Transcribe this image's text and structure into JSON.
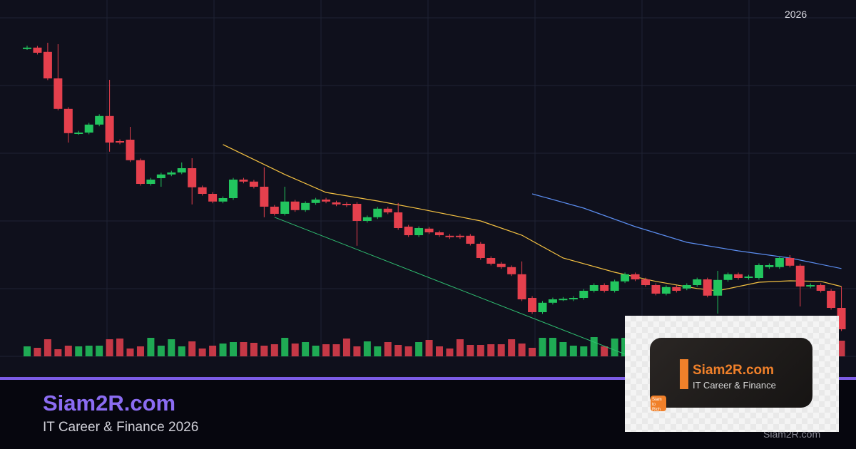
{
  "header": {
    "year_label": "2026"
  },
  "footer": {
    "brand": "Siam2R.com",
    "tagline": "IT Career & Finance 2026",
    "watermark": "Siam2R.com"
  },
  "logo_card": {
    "title": "Siam2R.com",
    "subtitle": "IT Career & Finance",
    "badge": "Siam to Rich"
  },
  "colors": {
    "up": "#22c55e",
    "down": "#e5404d",
    "ma_fast": "#f5c242",
    "ma_slow": "#5b8def",
    "trendline": "#2fbf71",
    "accent": "#7c5ce6",
    "logo_orange": "#f0802a"
  },
  "chart_data": {
    "type": "candlestick",
    "title": "",
    "xlabel": "",
    "ylabel": "",
    "grid": true,
    "candles": [
      {
        "o": 113.3,
        "c": 113.3,
        "h": 114,
        "l": 112.5
      },
      {
        "o": 113.3,
        "c": 111.5
      },
      {
        "o": 111.8,
        "c": 102.5,
        "h": 115
      },
      {
        "o": 102.5,
        "c": 91.8,
        "h": 114.5,
        "l": 91.3
      },
      {
        "o": 91.8,
        "c": 83.3,
        "l": 80
      },
      {
        "o": 83.3,
        "c": 83.5
      },
      {
        "o": 83.5,
        "c": 86.3
      },
      {
        "o": 86.3,
        "c": 89.3
      },
      {
        "o": 89.3,
        "c": 80,
        "h": 102,
        "l": 76.8
      },
      {
        "o": 80.5,
        "c": 80
      },
      {
        "o": 81,
        "c": 73.8,
        "h": 85.5
      },
      {
        "o": 73.8,
        "c": 65.5
      },
      {
        "o": 65.5,
        "c": 67
      },
      {
        "o": 67.5,
        "c": 68.8,
        "l": 64.5
      },
      {
        "o": 68.8,
        "c": 69.5
      },
      {
        "o": 69.5,
        "c": 71,
        "h": 73
      },
      {
        "o": 71,
        "c": 64.3,
        "h": 74.5,
        "l": 58.3
      },
      {
        "o": 64.3,
        "c": 62
      },
      {
        "o": 62,
        "c": 59.3
      },
      {
        "o": 59.3,
        "c": 60.5
      },
      {
        "o": 60.5,
        "c": 67
      },
      {
        "o": 67,
        "c": 66.3
      },
      {
        "o": 66.3,
        "c": 64.5
      },
      {
        "o": 64.5,
        "c": 57.5,
        "h": 71.3,
        "l": 53.8
      },
      {
        "o": 57.5,
        "c": 55
      },
      {
        "o": 55,
        "c": 59.3,
        "h": 64.5
      },
      {
        "o": 59.3,
        "c": 56.3
      },
      {
        "o": 56.3,
        "c": 58.8
      },
      {
        "o": 58.8,
        "c": 60
      },
      {
        "o": 60,
        "c": 59.3
      },
      {
        "o": 59,
        "c": 58.3
      },
      {
        "o": 58.5,
        "c": 58
      },
      {
        "o": 58.5,
        "c": 52.5,
        "l": 43.8
      },
      {
        "o": 52.5,
        "c": 53.8
      },
      {
        "o": 53.8,
        "c": 56.8
      },
      {
        "o": 56.8,
        "c": 55.5
      },
      {
        "o": 55.5,
        "c": 50,
        "h": 58.8
      },
      {
        "o": 50.5,
        "c": 47.5
      },
      {
        "o": 47.5,
        "c": 50
      },
      {
        "o": 49.8,
        "c": 48.5
      },
      {
        "o": 48.5,
        "c": 47.5
      },
      {
        "o": 47.3,
        "c": 46.8
      },
      {
        "o": 47.3,
        "c": 46.8
      },
      {
        "o": 47.3,
        "c": 44.5
      },
      {
        "o": 44.5,
        "c": 39.5
      },
      {
        "o": 39.5,
        "c": 37.5
      },
      {
        "o": 37.5,
        "c": 36.3
      },
      {
        "o": 36.3,
        "c": 33.8
      },
      {
        "o": 33.8,
        "c": 25,
        "h": 38.3
      },
      {
        "o": 25.5,
        "c": 20.5
      },
      {
        "o": 20.5,
        "c": 23.8
      },
      {
        "o": 23.8,
        "c": 25
      },
      {
        "o": 25,
        "c": 25.2
      },
      {
        "o": 25,
        "c": 25.5
      },
      {
        "o": 25.5,
        "c": 28
      },
      {
        "o": 28,
        "c": 30
      },
      {
        "o": 30,
        "c": 28
      },
      {
        "o": 28,
        "c": 31.3
      },
      {
        "o": 31.3,
        "c": 33.8
      },
      {
        "o": 33.8,
        "c": 32
      },
      {
        "o": 32,
        "c": 30
      },
      {
        "o": 30,
        "c": 27
      },
      {
        "o": 27,
        "c": 29.3
      },
      {
        "o": 29.3,
        "c": 28
      },
      {
        "o": 28.8,
        "c": 30
      },
      {
        "o": 30,
        "c": 32
      },
      {
        "o": 32,
        "c": 26.3
      },
      {
        "o": 26.3,
        "c": 31.8,
        "h": 35,
        "l": 20
      },
      {
        "o": 31.8,
        "c": 33.8
      },
      {
        "o": 33.8,
        "c": 32.5
      },
      {
        "o": 32.5,
        "c": 33
      },
      {
        "o": 32.5,
        "c": 37
      },
      {
        "o": 36.3,
        "c": 37
      },
      {
        "o": 36.3,
        "c": 39.5
      },
      {
        "o": 39.5,
        "c": 36.8,
        "h": 40.5
      },
      {
        "o": 36.8,
        "c": 29.5,
        "l": 22.5
      },
      {
        "o": 29.5,
        "c": 30
      },
      {
        "o": 30,
        "c": 28
      },
      {
        "o": 28,
        "c": 22
      },
      {
        "o": 22,
        "c": 14.5,
        "h": 29.5
      }
    ],
    "volume": [
      14,
      12,
      24,
      10,
      15,
      14,
      15,
      15,
      24,
      25,
      11,
      14,
      26,
      15,
      24,
      14,
      21,
      11,
      15,
      18,
      20,
      20,
      19,
      15,
      17,
      26,
      18,
      20,
      15,
      17,
      17,
      25,
      14,
      21,
      14,
      20,
      16,
      14,
      20,
      23,
      14,
      11,
      24,
      16,
      16,
      17,
      17,
      24,
      18,
      12,
      26,
      26,
      20,
      15,
      14,
      27,
      14,
      25,
      26,
      15,
      20,
      23,
      11,
      23,
      21,
      22,
      20,
      24,
      20,
      14,
      16,
      20,
      17,
      20,
      23,
      19,
      16,
      24,
      18,
      22
    ],
    "overlays": [
      {
        "kind": "moving-average",
        "color_key": "ma_fast",
        "points": [
          [
            19,
            79.3
          ],
          [
            25,
            68.8
          ],
          [
            29,
            62.5
          ],
          [
            34,
            59.5
          ],
          [
            38,
            56.8
          ],
          [
            44,
            52.5
          ],
          [
            48,
            47.5
          ],
          [
            52,
            39.5
          ],
          [
            57,
            34.5
          ],
          [
            61,
            31.3
          ],
          [
            65,
            28.8
          ],
          [
            67,
            28
          ],
          [
            71,
            31
          ],
          [
            74,
            31.5
          ],
          [
            77,
            31.3
          ],
          [
            79,
            29.5
          ]
        ]
      },
      {
        "kind": "moving-average",
        "color_key": "ma_slow",
        "points": [
          [
            49,
            62
          ],
          [
            54,
            57
          ],
          [
            59,
            50.5
          ],
          [
            64,
            45
          ],
          [
            69,
            42
          ],
          [
            74,
            39.5
          ],
          [
            79,
            35.8
          ]
        ]
      },
      {
        "kind": "trendline",
        "color_key": "trendline",
        "points": [
          [
            24,
            53.8
          ],
          [
            79,
            -23.9
          ]
        ]
      }
    ]
  }
}
